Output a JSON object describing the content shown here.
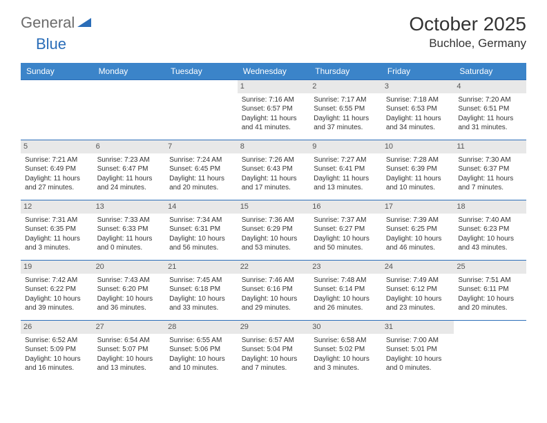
{
  "brand": {
    "part1": "General",
    "part2": "Blue"
  },
  "title": "October 2025",
  "location": "Buchloe, Germany",
  "colors": {
    "header_bg": "#3b84c9",
    "header_text": "#ffffff",
    "border": "#2a6db8",
    "daynum_bg": "#e8e8e8",
    "text": "#333333",
    "logo_gray": "#6b6b6b",
    "logo_blue": "#2a6db8"
  },
  "weekdays": [
    "Sunday",
    "Monday",
    "Tuesday",
    "Wednesday",
    "Thursday",
    "Friday",
    "Saturday"
  ],
  "weeks": [
    [
      null,
      null,
      null,
      {
        "n": "1",
        "sr": "Sunrise: 7:16 AM",
        "ss": "Sunset: 6:57 PM",
        "d1": "Daylight: 11 hours",
        "d2": "and 41 minutes."
      },
      {
        "n": "2",
        "sr": "Sunrise: 7:17 AM",
        "ss": "Sunset: 6:55 PM",
        "d1": "Daylight: 11 hours",
        "d2": "and 37 minutes."
      },
      {
        "n": "3",
        "sr": "Sunrise: 7:18 AM",
        "ss": "Sunset: 6:53 PM",
        "d1": "Daylight: 11 hours",
        "d2": "and 34 minutes."
      },
      {
        "n": "4",
        "sr": "Sunrise: 7:20 AM",
        "ss": "Sunset: 6:51 PM",
        "d1": "Daylight: 11 hours",
        "d2": "and 31 minutes."
      }
    ],
    [
      {
        "n": "5",
        "sr": "Sunrise: 7:21 AM",
        "ss": "Sunset: 6:49 PM",
        "d1": "Daylight: 11 hours",
        "d2": "and 27 minutes."
      },
      {
        "n": "6",
        "sr": "Sunrise: 7:23 AM",
        "ss": "Sunset: 6:47 PM",
        "d1": "Daylight: 11 hours",
        "d2": "and 24 minutes."
      },
      {
        "n": "7",
        "sr": "Sunrise: 7:24 AM",
        "ss": "Sunset: 6:45 PM",
        "d1": "Daylight: 11 hours",
        "d2": "and 20 minutes."
      },
      {
        "n": "8",
        "sr": "Sunrise: 7:26 AM",
        "ss": "Sunset: 6:43 PM",
        "d1": "Daylight: 11 hours",
        "d2": "and 17 minutes."
      },
      {
        "n": "9",
        "sr": "Sunrise: 7:27 AM",
        "ss": "Sunset: 6:41 PM",
        "d1": "Daylight: 11 hours",
        "d2": "and 13 minutes."
      },
      {
        "n": "10",
        "sr": "Sunrise: 7:28 AM",
        "ss": "Sunset: 6:39 PM",
        "d1": "Daylight: 11 hours",
        "d2": "and 10 minutes."
      },
      {
        "n": "11",
        "sr": "Sunrise: 7:30 AM",
        "ss": "Sunset: 6:37 PM",
        "d1": "Daylight: 11 hours",
        "d2": "and 7 minutes."
      }
    ],
    [
      {
        "n": "12",
        "sr": "Sunrise: 7:31 AM",
        "ss": "Sunset: 6:35 PM",
        "d1": "Daylight: 11 hours",
        "d2": "and 3 minutes."
      },
      {
        "n": "13",
        "sr": "Sunrise: 7:33 AM",
        "ss": "Sunset: 6:33 PM",
        "d1": "Daylight: 11 hours",
        "d2": "and 0 minutes."
      },
      {
        "n": "14",
        "sr": "Sunrise: 7:34 AM",
        "ss": "Sunset: 6:31 PM",
        "d1": "Daylight: 10 hours",
        "d2": "and 56 minutes."
      },
      {
        "n": "15",
        "sr": "Sunrise: 7:36 AM",
        "ss": "Sunset: 6:29 PM",
        "d1": "Daylight: 10 hours",
        "d2": "and 53 minutes."
      },
      {
        "n": "16",
        "sr": "Sunrise: 7:37 AM",
        "ss": "Sunset: 6:27 PM",
        "d1": "Daylight: 10 hours",
        "d2": "and 50 minutes."
      },
      {
        "n": "17",
        "sr": "Sunrise: 7:39 AM",
        "ss": "Sunset: 6:25 PM",
        "d1": "Daylight: 10 hours",
        "d2": "and 46 minutes."
      },
      {
        "n": "18",
        "sr": "Sunrise: 7:40 AM",
        "ss": "Sunset: 6:23 PM",
        "d1": "Daylight: 10 hours",
        "d2": "and 43 minutes."
      }
    ],
    [
      {
        "n": "19",
        "sr": "Sunrise: 7:42 AM",
        "ss": "Sunset: 6:22 PM",
        "d1": "Daylight: 10 hours",
        "d2": "and 39 minutes."
      },
      {
        "n": "20",
        "sr": "Sunrise: 7:43 AM",
        "ss": "Sunset: 6:20 PM",
        "d1": "Daylight: 10 hours",
        "d2": "and 36 minutes."
      },
      {
        "n": "21",
        "sr": "Sunrise: 7:45 AM",
        "ss": "Sunset: 6:18 PM",
        "d1": "Daylight: 10 hours",
        "d2": "and 33 minutes."
      },
      {
        "n": "22",
        "sr": "Sunrise: 7:46 AM",
        "ss": "Sunset: 6:16 PM",
        "d1": "Daylight: 10 hours",
        "d2": "and 29 minutes."
      },
      {
        "n": "23",
        "sr": "Sunrise: 7:48 AM",
        "ss": "Sunset: 6:14 PM",
        "d1": "Daylight: 10 hours",
        "d2": "and 26 minutes."
      },
      {
        "n": "24",
        "sr": "Sunrise: 7:49 AM",
        "ss": "Sunset: 6:12 PM",
        "d1": "Daylight: 10 hours",
        "d2": "and 23 minutes."
      },
      {
        "n": "25",
        "sr": "Sunrise: 7:51 AM",
        "ss": "Sunset: 6:11 PM",
        "d1": "Daylight: 10 hours",
        "d2": "and 20 minutes."
      }
    ],
    [
      {
        "n": "26",
        "sr": "Sunrise: 6:52 AM",
        "ss": "Sunset: 5:09 PM",
        "d1": "Daylight: 10 hours",
        "d2": "and 16 minutes."
      },
      {
        "n": "27",
        "sr": "Sunrise: 6:54 AM",
        "ss": "Sunset: 5:07 PM",
        "d1": "Daylight: 10 hours",
        "d2": "and 13 minutes."
      },
      {
        "n": "28",
        "sr": "Sunrise: 6:55 AM",
        "ss": "Sunset: 5:06 PM",
        "d1": "Daylight: 10 hours",
        "d2": "and 10 minutes."
      },
      {
        "n": "29",
        "sr": "Sunrise: 6:57 AM",
        "ss": "Sunset: 5:04 PM",
        "d1": "Daylight: 10 hours",
        "d2": "and 7 minutes."
      },
      {
        "n": "30",
        "sr": "Sunrise: 6:58 AM",
        "ss": "Sunset: 5:02 PM",
        "d1": "Daylight: 10 hours",
        "d2": "and 3 minutes."
      },
      {
        "n": "31",
        "sr": "Sunrise: 7:00 AM",
        "ss": "Sunset: 5:01 PM",
        "d1": "Daylight: 10 hours",
        "d2": "and 0 minutes."
      },
      null
    ]
  ]
}
